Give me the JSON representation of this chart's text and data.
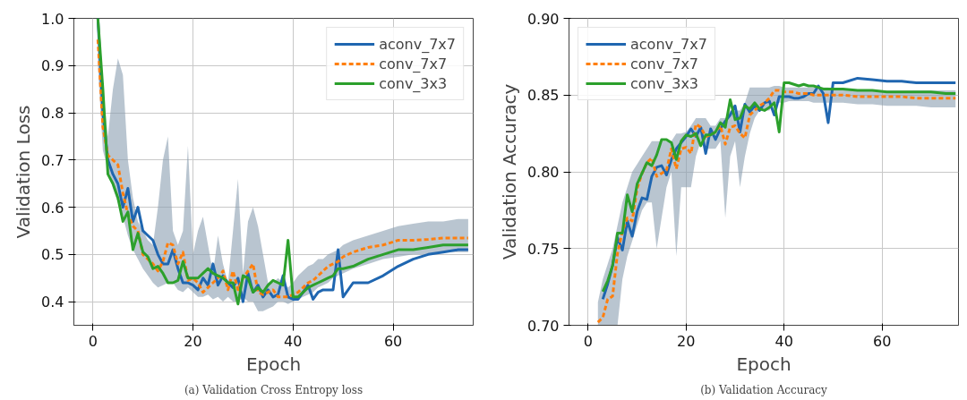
{
  "chart_data": [
    {
      "type": "line",
      "title": "(a) Validation Cross Entropy loss",
      "xlabel": "Epoch",
      "ylabel": "Validation Loss",
      "xlim": [
        -3.8,
        76
      ],
      "ylim": [
        0.35,
        1.0
      ],
      "xticks": [
        0,
        20,
        40,
        60
      ],
      "yticks": [
        0.4,
        0.5,
        0.6,
        0.7,
        0.8,
        0.9,
        {
          "value": 1,
          "label": "1.0"
        }
      ],
      "grid": true,
      "legend": "top right",
      "x": [
        1,
        2,
        3,
        4,
        5,
        6,
        7,
        8,
        9,
        10,
        11,
        12,
        13,
        14,
        15,
        16,
        17,
        18,
        19,
        20,
        21,
        22,
        23,
        24,
        25,
        26,
        27,
        28,
        29,
        30,
        31,
        32,
        33,
        34,
        35,
        36,
        37,
        38,
        39,
        40,
        41,
        42,
        43,
        44,
        45,
        46,
        47,
        48,
        49,
        50,
        52,
        55,
        58,
        61,
        64,
        67,
        70,
        73,
        75
      ],
      "series": [
        {
          "name": "aconv_7x7",
          "color": "#1f66b0",
          "values": [
            1.0,
            0.8,
            0.7,
            0.67,
            0.65,
            0.6,
            0.64,
            0.57,
            0.6,
            0.55,
            0.54,
            0.53,
            0.5,
            0.48,
            0.48,
            0.51,
            0.47,
            0.44,
            0.44,
            0.435,
            0.425,
            0.45,
            0.435,
            0.48,
            0.435,
            0.455,
            0.44,
            0.43,
            0.45,
            0.4,
            0.46,
            0.42,
            0.435,
            0.41,
            0.425,
            0.41,
            0.415,
            0.455,
            0.41,
            0.405,
            0.405,
            0.42,
            0.435,
            0.405,
            0.42,
            0.425,
            0.425,
            0.425,
            0.51,
            0.41,
            0.44,
            0.44,
            0.455,
            0.475,
            0.49,
            0.5,
            0.505,
            0.51,
            0.51
          ]
        },
        {
          "name": "conv_7x7",
          "color": "#ff7f0e",
          "line_style": "dashed",
          "values": [
            0.955,
            0.77,
            0.71,
            0.7,
            0.69,
            0.63,
            0.585,
            0.56,
            0.55,
            0.5,
            0.49,
            0.48,
            0.465,
            0.485,
            0.525,
            0.52,
            0.48,
            0.505,
            0.445,
            0.45,
            0.44,
            0.42,
            0.43,
            0.44,
            0.45,
            0.465,
            0.425,
            0.465,
            0.425,
            0.45,
            0.465,
            0.48,
            0.42,
            0.415,
            0.42,
            0.425,
            0.41,
            0.41,
            0.41,
            0.415,
            0.42,
            0.43,
            0.44,
            0.445,
            0.455,
            0.465,
            0.475,
            0.48,
            0.485,
            0.495,
            0.505,
            0.515,
            0.52,
            0.53,
            0.53,
            0.532,
            0.535,
            0.535,
            0.535
          ],
          "lower": [
            0.9,
            0.72,
            0.68,
            0.64,
            0.61,
            0.58,
            0.54,
            0.51,
            0.49,
            0.47,
            0.455,
            0.44,
            0.43,
            0.435,
            0.44,
            0.44,
            0.425,
            0.42,
            0.43,
            0.42,
            0.41,
            0.41,
            0.415,
            0.405,
            0.41,
            0.4,
            0.41,
            0.4,
            0.4,
            0.41,
            0.4,
            0.4,
            0.38,
            0.38,
            0.385,
            0.39,
            0.4,
            0.4,
            0.395,
            0.4,
            0.405,
            0.41,
            0.415,
            0.42,
            0.43,
            0.435,
            0.44,
            0.45,
            0.455,
            0.46,
            0.47,
            0.48,
            0.49,
            0.495,
            0.5,
            0.5,
            0.505,
            0.505,
            0.505
          ],
          "upper": [
            1.0,
            0.85,
            0.75,
            0.85,
            0.915,
            0.88,
            0.7,
            0.62,
            0.57,
            0.55,
            0.53,
            0.52,
            0.6,
            0.7,
            0.75,
            0.55,
            0.52,
            0.55,
            0.73,
            0.5,
            0.55,
            0.58,
            0.52,
            0.46,
            0.54,
            0.48,
            0.44,
            0.55,
            0.66,
            0.46,
            0.57,
            0.6,
            0.56,
            0.5,
            0.44,
            0.44,
            0.45,
            0.44,
            0.43,
            0.44,
            0.455,
            0.465,
            0.475,
            0.48,
            0.49,
            0.49,
            0.5,
            0.505,
            0.51,
            0.52,
            0.53,
            0.54,
            0.55,
            0.56,
            0.565,
            0.57,
            0.57,
            0.575,
            0.575
          ]
        },
        {
          "name": "conv_3x3",
          "color": "#2ca02c",
          "values": [
            1.0,
            0.85,
            0.67,
            0.65,
            0.62,
            0.57,
            0.59,
            0.51,
            0.545,
            0.505,
            0.495,
            0.47,
            0.475,
            0.46,
            0.44,
            0.44,
            0.445,
            0.485,
            0.45,
            0.45,
            0.45,
            0.46,
            0.47,
            0.46,
            0.455,
            0.45,
            0.44,
            0.44,
            0.395,
            0.455,
            0.45,
            0.42,
            0.43,
            0.42,
            0.435,
            0.445,
            0.44,
            0.435,
            0.53,
            0.41,
            0.41,
            0.42,
            0.43,
            0.435,
            0.44,
            0.445,
            0.45,
            0.455,
            0.47,
            0.47,
            0.475,
            0.49,
            0.5,
            0.51,
            0.51,
            0.515,
            0.52,
            0.52,
            0.52
          ]
        }
      ]
    },
    {
      "type": "line",
      "title": "(b) Validation Accuracy",
      "xlabel": "Epoch",
      "ylabel": "Validation Accuracy",
      "xlim": [
        -3.9,
        75.6
      ],
      "ylim": [
        0.7,
        0.9
      ],
      "xticks": [
        0,
        20,
        40,
        60
      ],
      "yticks": [
        {
          "value": 0.7,
          "label": "0.70"
        },
        0.75,
        {
          "value": 0.8,
          "label": "0.80"
        },
        0.85,
        {
          "value": 0.9,
          "label": "0.90"
        }
      ],
      "grid": true,
      "legend": "top left",
      "x": [
        2,
        3,
        4,
        5,
        6,
        7,
        8,
        9,
        10,
        11,
        12,
        13,
        14,
        15,
        16,
        17,
        18,
        19,
        20,
        21,
        22,
        23,
        24,
        25,
        26,
        27,
        28,
        29,
        30,
        31,
        32,
        33,
        34,
        35,
        36,
        37,
        38,
        39,
        40,
        41,
        42,
        43,
        44,
        45,
        46,
        47,
        48,
        49,
        50,
        52,
        55,
        58,
        61,
        64,
        67,
        70,
        73,
        75
      ],
      "series": [
        {
          "name": "aconv_7x7",
          "color": "#1f66b0",
          "values": [
            null,
            0.717,
            0.727,
            0.739,
            0.757,
            0.749,
            0.768,
            0.758,
            0.774,
            0.783,
            0.782,
            0.797,
            0.803,
            0.804,
            0.798,
            0.808,
            0.815,
            0.819,
            0.823,
            0.828,
            0.823,
            0.829,
            0.812,
            0.828,
            0.821,
            0.828,
            0.833,
            0.837,
            0.843,
            0.826,
            0.844,
            0.839,
            0.843,
            0.84,
            0.845,
            0.846,
            0.837,
            0.849,
            0.849,
            0.849,
            0.848,
            0.848,
            0.849,
            0.851,
            0.851,
            0.856,
            0.851,
            0.832,
            0.858,
            0.858,
            0.861,
            0.86,
            0.859,
            0.859,
            0.858,
            0.858,
            0.858,
            0.858
          ]
        },
        {
          "name": "conv_7x7",
          "color": "#ff7f0e",
          "line_style": "dashed",
          "values": [
            0.702,
            0.705,
            0.717,
            0.719,
            0.747,
            0.761,
            0.77,
            0.768,
            0.789,
            0.799,
            0.806,
            0.809,
            0.797,
            0.799,
            0.801,
            0.815,
            0.802,
            0.815,
            0.816,
            0.812,
            0.831,
            0.829,
            0.823,
            0.824,
            0.826,
            0.83,
            0.818,
            0.829,
            0.83,
            0.825,
            0.822,
            0.837,
            0.84,
            0.843,
            0.845,
            0.848,
            0.853,
            0.853,
            0.852,
            0.852,
            0.852,
            0.851,
            0.851,
            0.851,
            0.85,
            0.85,
            0.85,
            0.85,
            0.85,
            0.85,
            0.849,
            0.849,
            0.849,
            0.849,
            0.848,
            0.848,
            0.848,
            0.848
          ],
          "lower": [
            0.7,
            0.7,
            0.7,
            0.7,
            0.7,
            0.73,
            0.745,
            0.755,
            0.765,
            0.775,
            0.78,
            0.78,
            0.75,
            0.77,
            0.79,
            0.8,
            0.745,
            0.79,
            0.79,
            0.79,
            0.81,
            0.82,
            0.815,
            0.815,
            0.815,
            0.82,
            0.77,
            0.81,
            0.82,
            0.79,
            0.81,
            0.825,
            0.835,
            0.84,
            0.84,
            0.84,
            0.845,
            0.845,
            0.845,
            0.846,
            0.846,
            0.846,
            0.846,
            0.846,
            0.845,
            0.845,
            0.845,
            0.845,
            0.845,
            0.845,
            0.844,
            0.844,
            0.843,
            0.843,
            0.843,
            0.842,
            0.842,
            0.842
          ],
          "upper": [
            0.715,
            0.73,
            0.74,
            0.75,
            0.765,
            0.78,
            0.79,
            0.8,
            0.805,
            0.81,
            0.815,
            0.82,
            0.82,
            0.82,
            0.82,
            0.82,
            0.825,
            0.825,
            0.826,
            0.83,
            0.835,
            0.835,
            0.835,
            0.83,
            0.83,
            0.835,
            0.835,
            0.84,
            0.84,
            0.84,
            0.845,
            0.855,
            0.855,
            0.855,
            0.855,
            0.855,
            0.856,
            0.856,
            0.855,
            0.855,
            0.855,
            0.855,
            0.855,
            0.855,
            0.855,
            0.855,
            0.855,
            0.855,
            0.854,
            0.854,
            0.853,
            0.853,
            0.853,
            0.853,
            0.853,
            0.853,
            0.853,
            0.853
          ]
        },
        {
          "name": "conv_3x3",
          "color": "#2ca02c",
          "values": [
            null,
            0.722,
            0.729,
            0.739,
            0.76,
            0.76,
            0.785,
            0.774,
            0.792,
            0.799,
            0.806,
            0.804,
            0.811,
            0.821,
            0.821,
            0.819,
            0.808,
            0.82,
            0.824,
            0.823,
            0.825,
            0.817,
            0.824,
            0.824,
            0.826,
            0.832,
            0.829,
            0.847,
            0.834,
            0.835,
            0.843,
            0.841,
            0.845,
            0.841,
            0.84,
            0.842,
            0.845,
            0.826,
            0.858,
            0.858,
            0.857,
            0.856,
            0.857,
            0.856,
            0.856,
            0.855,
            0.854,
            0.854,
            0.854,
            0.854,
            0.853,
            0.853,
            0.852,
            0.852,
            0.852,
            0.852,
            0.851,
            0.851
          ]
        }
      ]
    }
  ]
}
